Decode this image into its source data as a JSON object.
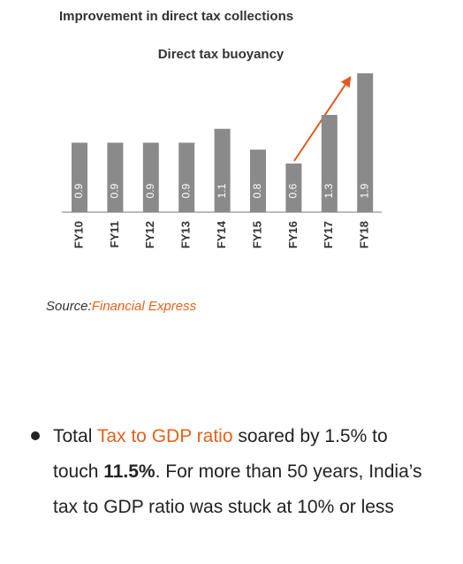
{
  "chart_data": {
    "type": "bar",
    "title": "Improvement in direct tax collections",
    "subtitle": "Direct tax buoyancy",
    "categories": [
      "FY10",
      "FY11",
      "FY12",
      "FY13",
      "FY14",
      "FY15",
      "FY16",
      "FY17",
      "FY18"
    ],
    "values": [
      0.9,
      0.9,
      0.9,
      0.9,
      1.1,
      0.8,
      0.6,
      1.3,
      1.9
    ],
    "color": "#8a8a8a",
    "ylim": [
      -0.1,
      2.0
    ]
  },
  "source": {
    "label": "Source:",
    "name": "Financial Express"
  },
  "bullet": {
    "text_1": "Total ",
    "link": "Tax to GDP ratio",
    "text_2": " soared by 1.5% to touch ",
    "bold": "11.5%",
    "text_3": ". For more than 50 years, India’s tax to GDP ratio was stuck at 10% or less"
  }
}
